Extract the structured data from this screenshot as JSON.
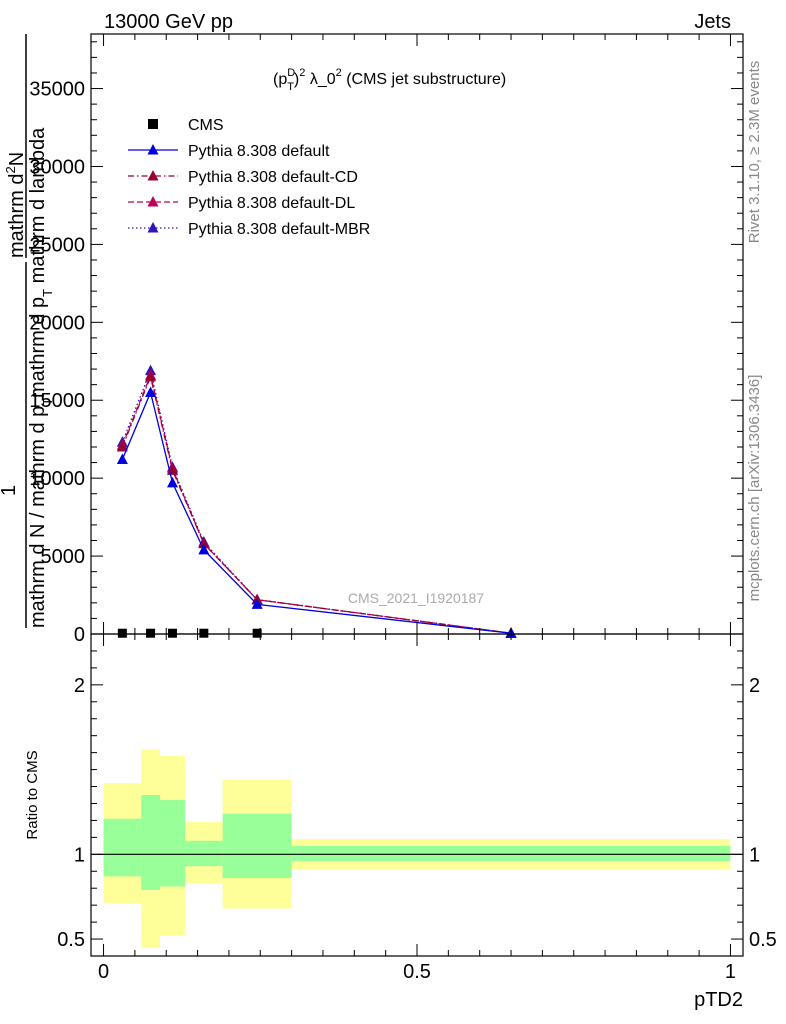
{
  "header": {
    "left": "13000 GeV pp",
    "right": "Jets"
  },
  "side_labels": {
    "rivet": "Rivet 3.1.10, ≥ 2.3M events",
    "mcplots": "mcplots.cern.ch [arXiv:1306.3436]"
  },
  "chart_data": [
    {
      "type": "line",
      "title": "(p_T^D)^2 λ_0^2 (CMS jet substructure)",
      "title_parts": {
        "open": "(p",
        "sup_d": "D",
        "sub_t": "T",
        "close_sq": ")",
        "sup2": "2",
        "lambda": " λ_0",
        "sup2b": "2",
        "rest": " (CMS jet substructure)"
      },
      "watermark": "CMS_2021_I1920187",
      "xlabel": "pTD2",
      "ylabel_lines": [
        "mathrm d²N",
        "mathrm d p_T mathrm d lambda",
        "1",
        "mathrm d N / mathrm d p_T"
      ],
      "ylabel_raw": {
        "num_top": "mathrm d",
        "num_sup": "2",
        "num_tail": "N",
        "den_top": "mathrm d p",
        "den_sub": "T",
        "den_tail": " mathrm d lambda",
        "one": "1",
        "bottom": "mathrm d N / mathrm d p",
        "bottom_sub": "T"
      },
      "xlim": [
        -0.02,
        1.02
      ],
      "ylim": [
        0,
        38500
      ],
      "yticks": [
        0,
        5000,
        10000,
        15000,
        20000,
        25000,
        30000,
        35000
      ],
      "ytick_labels": [
        "0",
        "5000",
        "10000",
        "15000",
        "20000",
        "25000",
        "30000",
        "35000"
      ],
      "xticks": [
        0,
        0.5,
        1
      ],
      "xtick_labels": [
        "0",
        "0.5",
        "1"
      ],
      "legend_position": "top-left",
      "series": [
        {
          "name": "CMS",
          "color": "#000000",
          "marker": "square",
          "line": "none",
          "x": [
            0.03,
            0.075,
            0.11,
            0.16,
            0.245
          ],
          "y": [
            50,
            50,
            50,
            50,
            50
          ]
        },
        {
          "name": "Pythia 8.308 default",
          "color": "#0000dd",
          "marker": "triangle",
          "line": "solid",
          "x": [
            0.03,
            0.075,
            0.11,
            0.16,
            0.245,
            0.65
          ],
          "y": [
            11200,
            15500,
            9700,
            5400,
            1900,
            50
          ]
        },
        {
          "name": "Pythia 8.308 default-CD",
          "color": "#990033",
          "marker": "triangle",
          "line": "dashdot",
          "x": [
            0.03,
            0.075,
            0.11,
            0.16,
            0.245,
            0.65
          ],
          "y": [
            12000,
            16500,
            10500,
            5800,
            2200,
            50
          ]
        },
        {
          "name": "Pythia 8.308 default-DL",
          "color": "#bb0055",
          "marker": "triangle",
          "line": "dashed",
          "x": [
            0.03,
            0.075,
            0.11,
            0.16,
            0.245,
            0.65
          ],
          "y": [
            12100,
            16600,
            10600,
            5800,
            2200,
            50
          ]
        },
        {
          "name": "Pythia 8.308 default-MBR",
          "color": "#3311bb",
          "marker": "triangle",
          "line": "dotted",
          "x": [
            0.03,
            0.075,
            0.11,
            0.16,
            0.245,
            0.65
          ],
          "y": [
            12300,
            16900,
            10700,
            5900,
            2200,
            50
          ]
        }
      ]
    },
    {
      "type": "area",
      "ylabel": "Ratio to CMS",
      "ylim": [
        0.4,
        2.3
      ],
      "yticks": [
        0.5,
        1,
        2
      ],
      "ytick_labels": [
        "0.5",
        "1",
        "2"
      ],
      "reference_line": 1,
      "bands": {
        "bin_edges": [
          0,
          0.06,
          0.09,
          0.13,
          0.19,
          0.3,
          1.0
        ],
        "outer": {
          "color": "#ffff99",
          "lo": [
            0.71,
            0.45,
            0.52,
            0.83,
            0.68,
            0.91
          ],
          "hi": [
            1.42,
            1.62,
            1.58,
            1.19,
            1.44,
            1.09
          ]
        },
        "inner": {
          "color": "#99ff99",
          "lo": [
            0.87,
            0.79,
            0.81,
            0.93,
            0.86,
            0.96
          ],
          "hi": [
            1.21,
            1.35,
            1.32,
            1.08,
            1.24,
            1.05
          ]
        }
      }
    }
  ]
}
